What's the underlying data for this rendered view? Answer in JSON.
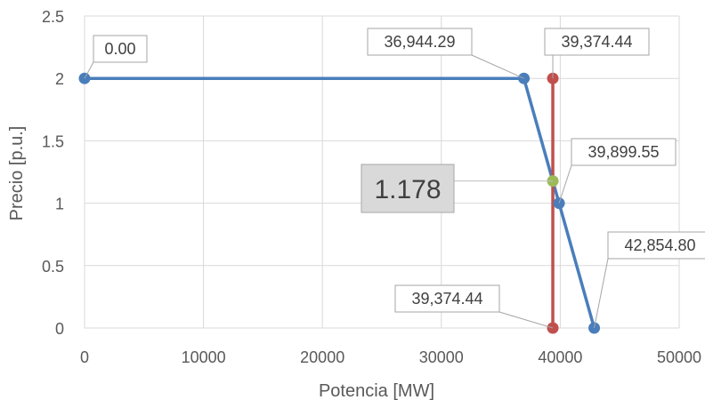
{
  "chart_data": {
    "type": "scatter",
    "title": "",
    "xlabel": "Potencia [MW]",
    "ylabel": "Precio [p.u.]",
    "xlim": [
      0,
      50000
    ],
    "ylim": [
      0,
      2.5
    ],
    "x_ticks": [
      0,
      10000,
      20000,
      30000,
      40000,
      50000
    ],
    "x_tick_labels": [
      "0",
      "10000",
      "20000",
      "30000",
      "40000",
      "50000"
    ],
    "y_ticks": [
      0,
      0.5,
      1,
      1.5,
      2,
      2.5
    ],
    "y_tick_labels": [
      "0",
      "0.5",
      "1",
      "1.5",
      "2",
      "2.5"
    ],
    "grid": true,
    "legend": "none",
    "series": [
      {
        "color": "#4a7ebb",
        "x": [
          0,
          36944.29,
          39899.55,
          42854.8
        ],
        "y": [
          2,
          2,
          1,
          0
        ],
        "point_labels": [
          "0.00",
          "36,944.29",
          "39,899.55",
          "42,854.80"
        ]
      },
      {
        "color": "#c0504d",
        "x": [
          39374.44,
          39374.44
        ],
        "y": [
          2,
          0
        ],
        "point_labels": [
          "39,374.44",
          "39,374.44"
        ]
      },
      {
        "color": "#9bbb59",
        "x": [
          39374.44
        ],
        "y": [
          1.178
        ],
        "point_labels": [
          "1.178"
        ]
      }
    ]
  }
}
